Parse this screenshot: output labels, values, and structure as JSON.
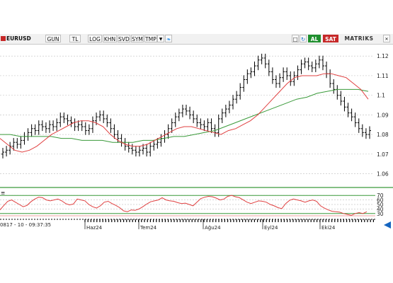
{
  "toolbar": {
    "symbol": "EURUSD",
    "buttons": [
      "GUN",
      "TL",
      "LOG",
      "KHN",
      "SVD",
      "SYM",
      "TMP"
    ],
    "actions": {
      "buy": "AL",
      "sell": "SAT"
    },
    "brand": "MATRIKS",
    "colors": {
      "buy": "#1f8f2e",
      "sell": "#c62828"
    }
  },
  "status_text": "0817 - 10 - 09:37:35",
  "chart_data": {
    "type": "line",
    "price_panel": {
      "y_ticks": [
        "1.12",
        "1.11",
        "1.1",
        "1.09",
        "1.08",
        "1.07",
        "1.06"
      ],
      "ylim": [
        1.0555,
        1.1255
      ],
      "bars": [
        1.071,
        1.072,
        1.074,
        1.076,
        1.075,
        1.077,
        1.079,
        1.081,
        1.083,
        1.082,
        1.085,
        1.084,
        1.083,
        1.085,
        1.084,
        1.086,
        1.089,
        1.088,
        1.087,
        1.086,
        1.084,
        1.085,
        1.084,
        1.082,
        1.083,
        1.087,
        1.089,
        1.09,
        1.088,
        1.086,
        1.083,
        1.08,
        1.078,
        1.076,
        1.074,
        1.073,
        1.072,
        1.071,
        1.072,
        1.073,
        1.071,
        1.074,
        1.075,
        1.076,
        1.078,
        1.08,
        1.083,
        1.086,
        1.089,
        1.091,
        1.093,
        1.092,
        1.09,
        1.088,
        1.086,
        1.085,
        1.084,
        1.086,
        1.083,
        1.081,
        1.088,
        1.091,
        1.093,
        1.095,
        1.098,
        1.1,
        1.104,
        1.108,
        1.111,
        1.112,
        1.115,
        1.118,
        1.119,
        1.116,
        1.112,
        1.108,
        1.106,
        1.109,
        1.112,
        1.11,
        1.107,
        1.11,
        1.113,
        1.116,
        1.117,
        1.115,
        1.114,
        1.116,
        1.118,
        1.115,
        1.111,
        1.106,
        1.103,
        1.1,
        1.097,
        1.094,
        1.091,
        1.089,
        1.086,
        1.083,
        1.081,
        1.08,
        1.082
      ],
      "fast_ma": [
        1.078,
        1.075,
        1.072,
        1.071,
        1.072,
        1.074,
        1.077,
        1.08,
        1.082,
        1.084,
        1.086,
        1.087,
        1.087,
        1.086,
        1.084,
        1.08,
        1.077,
        1.075,
        1.074,
        1.074,
        1.075,
        1.077,
        1.079,
        1.081,
        1.083,
        1.084,
        1.084,
        1.083,
        1.082,
        1.081,
        1.08,
        1.082,
        1.083,
        1.085,
        1.087,
        1.09,
        1.094,
        1.098,
        1.102,
        1.106,
        1.109,
        1.11,
        1.11,
        1.11,
        1.111,
        1.111,
        1.11,
        1.109,
        1.106,
        1.103,
        1.098
      ],
      "slow_ma": [
        1.08,
        1.08,
        1.079,
        1.079,
        1.079,
        1.079,
        1.078,
        1.078,
        1.077,
        1.077,
        1.077,
        1.076,
        1.076,
        1.076,
        1.077,
        1.077,
        1.078,
        1.079,
        1.079,
        1.08,
        1.081,
        1.082,
        1.084,
        1.086,
        1.088,
        1.09,
        1.092,
        1.094,
        1.096,
        1.098,
        1.099,
        1.101,
        1.102,
        1.103,
        1.103,
        1.103,
        1.102
      ],
      "colors": {
        "bars": "#000000",
        "fast_ma": "#e04040",
        "slow_ma": "#3a9a3a"
      }
    },
    "rsi_panel": {
      "y_ticks": [
        "70",
        "60",
        "50",
        "40",
        "30"
      ],
      "ylim": [
        25,
        75
      ],
      "levels": [
        70,
        30
      ],
      "values": [
        38,
        48,
        57,
        60,
        55,
        50,
        45,
        48,
        56,
        62,
        66,
        65,
        60,
        58,
        60,
        62,
        58,
        52,
        49,
        51,
        62,
        60,
        58,
        50,
        45,
        42,
        47,
        55,
        57,
        52,
        48,
        43,
        36,
        34,
        38,
        37,
        40,
        45,
        51,
        56,
        58,
        60,
        65,
        60,
        58,
        57,
        54,
        52,
        53,
        50,
        47,
        55,
        63,
        66,
        68,
        67,
        64,
        60,
        62,
        68,
        70,
        67,
        65,
        60,
        55,
        52,
        55,
        58,
        57,
        55,
        50,
        47,
        43,
        41,
        52,
        59,
        62,
        60,
        58,
        55,
        58,
        60,
        57,
        47,
        42,
        38,
        35,
        34,
        33,
        30,
        28,
        26,
        30,
        32,
        30,
        34
      ],
      "colors": {
        "line": "#e04040",
        "levels": "#3a9a3a"
      }
    },
    "x_ticks": [
      "Haz24",
      "Tem24",
      "Ağu24",
      "Eyl24",
      "Eki24"
    ]
  }
}
